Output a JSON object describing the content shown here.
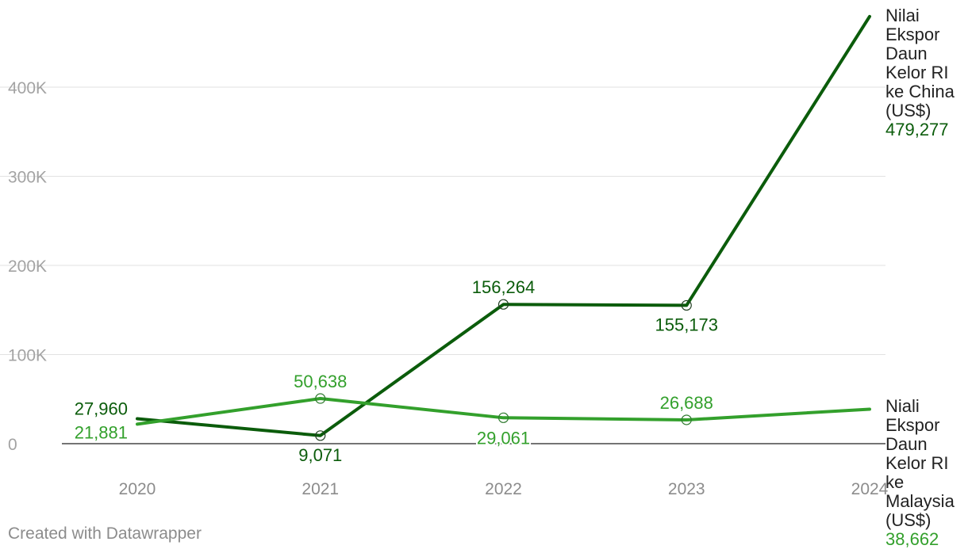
{
  "chart_data": {
    "type": "line",
    "x": [
      "2020",
      "2021",
      "2022",
      "2023",
      "2024"
    ],
    "ylim": [
      0,
      480000
    ],
    "yticks": [
      {
        "value": 0,
        "label": "0"
      },
      {
        "value": 100000,
        "label": "100K"
      },
      {
        "value": 200000,
        "label": "200K"
      },
      {
        "value": 300000,
        "label": "300K"
      },
      {
        "value": 400000,
        "label": "400K"
      }
    ],
    "grid": true,
    "series": [
      {
        "name": "Nilai Ekspor Daun Kelor RI ke China (US$)",
        "name_lines": [
          "Nilai",
          "Ekspor",
          "Daun",
          "Kelor RI",
          "ke China",
          "(US$)"
        ],
        "color": "#0b5c0b",
        "values": [
          27960,
          9071,
          156264,
          155173,
          479277
        ],
        "labels": [
          "27,960",
          "9,071",
          "156,264",
          "155,173",
          "479,277"
        ]
      },
      {
        "name": "Niali Ekspor Daun Kelor RI ke Malaysia (US$)",
        "name_lines": [
          "Niali",
          "Ekspor",
          "Daun",
          "Kelor RI",
          "ke",
          "Malaysia",
          "(US$)"
        ],
        "color": "#33a02c",
        "values": [
          21881,
          50638,
          29061,
          26688,
          38662
        ],
        "labels": [
          "21,881",
          "50,638",
          "29,061",
          "26,688",
          "38,662"
        ]
      }
    ]
  },
  "footer": {
    "credit": "Created with Datawrapper"
  }
}
